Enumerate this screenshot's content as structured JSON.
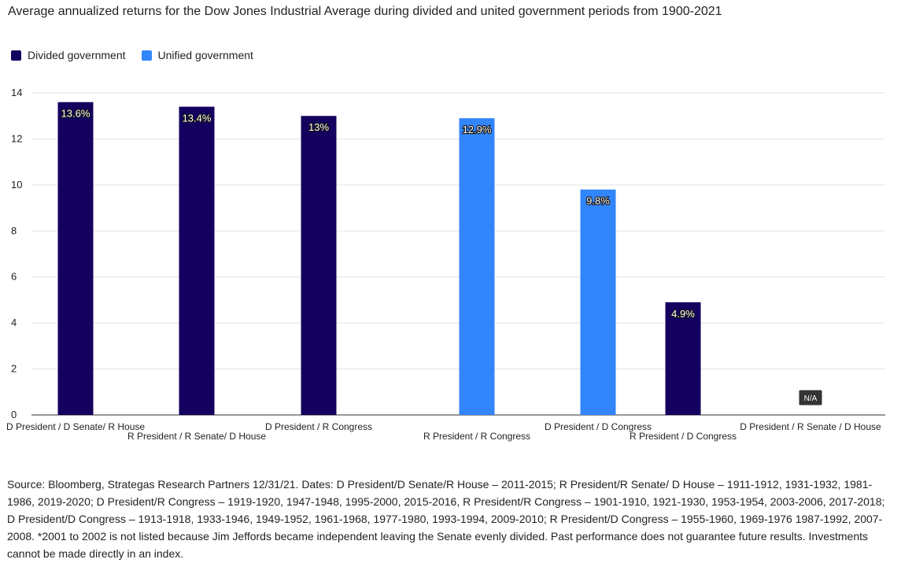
{
  "colors": {
    "divided": "#14005e",
    "unified": "#3385fb",
    "grid": "#e3e3e3",
    "axis": "#333333",
    "na_badge": "#333333"
  },
  "chart_data": {
    "type": "bar",
    "title": "Average annualized returns for the Dow Jones Industrial Average during divided and united government periods from 1900-2021",
    "legend": [
      {
        "name": "Divided government",
        "key": "divided"
      },
      {
        "name": "Unified government",
        "key": "unified"
      }
    ],
    "legend_position": "top-left",
    "grid": true,
    "ylim": [
      0,
      14
    ],
    "yticks": [
      "0",
      "2",
      "4",
      "6",
      "8",
      "10",
      "12",
      "14"
    ],
    "series": [
      {
        "name": "Divided government",
        "key": "divided"
      },
      {
        "name": "Unified government",
        "key": "unified"
      }
    ],
    "categories": [
      {
        "label": "D President / D Senate/ R House",
        "value": 13.6,
        "data_label": "13.6%",
        "group": "divided"
      },
      {
        "label": "R President / R Senate/ D House",
        "value": 13.4,
        "data_label": "13.4%",
        "group": "divided"
      },
      {
        "label": "D President / R Congress",
        "value": 13.0,
        "data_label": "13%",
        "group": "divided"
      },
      {
        "label": "R President / R Congress",
        "value": 12.9,
        "data_label": "12.9%",
        "group": "unified"
      },
      {
        "label": "D President / D Congress",
        "value": 9.8,
        "data_label": "9.8%",
        "group": "unified"
      },
      {
        "label": "R President / D Congress",
        "value": 4.9,
        "data_label": "4.9%",
        "group": "divided"
      },
      {
        "label": "D President / R Senate / D House",
        "value": null,
        "data_label": "N/A",
        "group": "divided"
      }
    ]
  },
  "source": "Source: Bloomberg, Strategas Research Partners 12/31/21. Dates: D President/D Senate/R House – 2011-2015; R President/R Senate/ D House – 1911-1912, 1931-1932, 1981-1986, 2019-2020; D President/R Congress – 1919-1920, 1947-1948, 1995-2000, 2015-2016, R President/R Congress – 1901-1910, 1921-1930, 1953-1954, 2003-2006, 2017-2018; D President/D Congress – 1913-1918, 1933-1946, 1949-1952, 1961-1968, 1977-1980, 1993-1994, 2009-2010; R President/D Congress – 1955-1960, 1969-1976 1987-1992, 2007-2008. *2001 to 2002 is not listed because Jim Jeffords became independent leaving the Senate evenly divided. Past performance does not guarantee future results. Investments cannot be made directly in an index."
}
